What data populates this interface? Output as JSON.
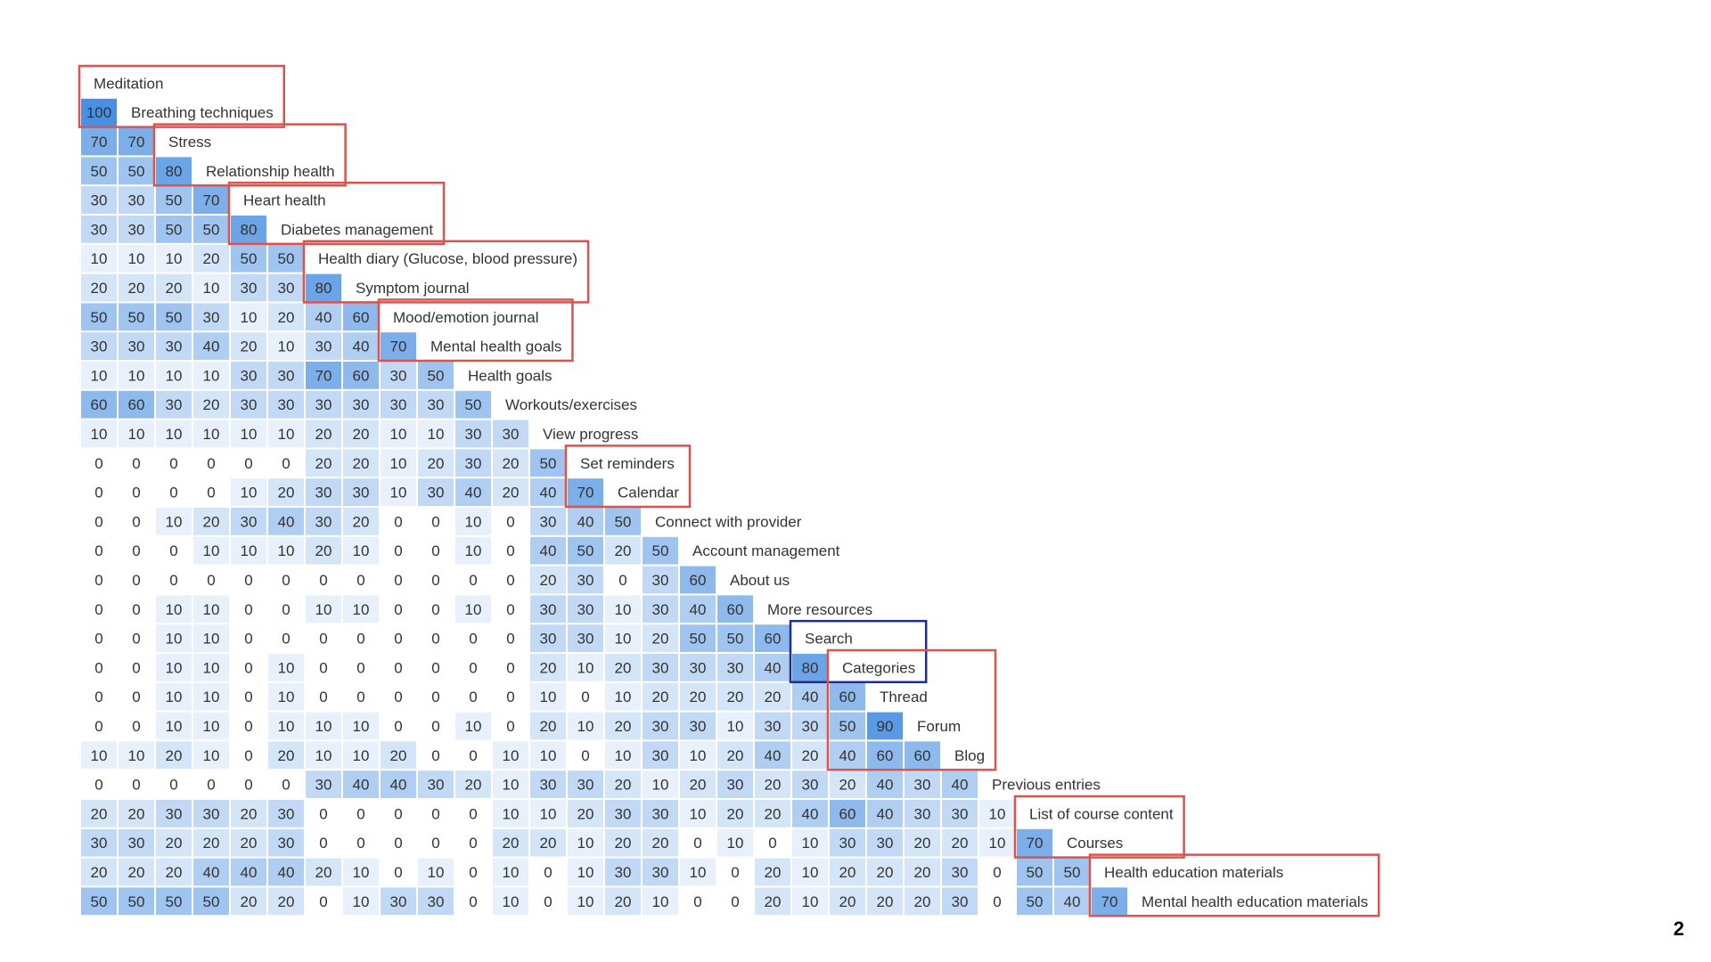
{
  "chart_data": {
    "type": "heatmap",
    "items": [
      "Meditation",
      "Breathing techniques",
      "Stress",
      "Relationship health",
      "Heart health",
      "Diabetes management",
      "Health diary (Glucose, blood pressure)",
      "Symptom journal",
      "Mood/emotion journal",
      "Mental health goals",
      "Health goals",
      "Workouts/exercises",
      "View progress",
      "Set reminders",
      "Calendar",
      "Connect with provider",
      "Account management",
      "About us",
      "More resources",
      "Search",
      "Categories",
      "Thread",
      "Forum",
      "Blog",
      "Previous entries",
      "List of course content",
      "Courses",
      "Health education materials",
      "Mental health education materials"
    ],
    "values": [
      [],
      [
        100
      ],
      [
        70,
        70
      ],
      [
        50,
        50,
        80
      ],
      [
        30,
        30,
        50,
        70
      ],
      [
        30,
        30,
        50,
        50,
        80
      ],
      [
        10,
        10,
        10,
        20,
        50,
        50
      ],
      [
        20,
        20,
        20,
        10,
        30,
        30,
        80
      ],
      [
        50,
        50,
        50,
        30,
        10,
        20,
        40,
        60
      ],
      [
        30,
        30,
        30,
        40,
        20,
        10,
        30,
        40,
        70
      ],
      [
        10,
        10,
        10,
        10,
        30,
        30,
        70,
        60,
        30,
        50
      ],
      [
        60,
        60,
        30,
        20,
        30,
        30,
        30,
        30,
        30,
        30,
        50
      ],
      [
        10,
        10,
        10,
        10,
        10,
        10,
        20,
        20,
        10,
        10,
        30,
        30
      ],
      [
        0,
        0,
        0,
        0,
        0,
        0,
        20,
        20,
        10,
        20,
        30,
        20,
        50
      ],
      [
        0,
        0,
        0,
        0,
        10,
        20,
        30,
        30,
        10,
        30,
        40,
        20,
        40,
        70
      ],
      [
        0,
        0,
        10,
        20,
        30,
        40,
        30,
        20,
        0,
        0,
        10,
        0,
        30,
        40,
        50
      ],
      [
        0,
        0,
        0,
        10,
        10,
        10,
        20,
        10,
        0,
        0,
        10,
        0,
        40,
        50,
        20,
        50
      ],
      [
        0,
        0,
        0,
        0,
        0,
        0,
        0,
        0,
        0,
        0,
        0,
        0,
        20,
        30,
        0,
        30,
        60
      ],
      [
        0,
        0,
        10,
        10,
        0,
        0,
        10,
        10,
        0,
        0,
        10,
        0,
        30,
        30,
        10,
        30,
        40,
        60
      ],
      [
        0,
        0,
        10,
        10,
        0,
        0,
        0,
        0,
        0,
        0,
        0,
        0,
        30,
        30,
        10,
        20,
        50,
        50,
        60
      ],
      [
        0,
        0,
        10,
        10,
        0,
        10,
        0,
        0,
        0,
        0,
        0,
        0,
        20,
        10,
        20,
        30,
        30,
        30,
        40,
        80
      ],
      [
        0,
        0,
        10,
        10,
        0,
        10,
        0,
        0,
        0,
        0,
        0,
        0,
        10,
        0,
        10,
        20,
        20,
        20,
        20,
        40,
        60
      ],
      [
        0,
        0,
        10,
        10,
        0,
        10,
        10,
        10,
        0,
        0,
        10,
        0,
        20,
        10,
        20,
        30,
        30,
        10,
        30,
        30,
        50,
        90
      ],
      [
        10,
        10,
        20,
        10,
        0,
        20,
        10,
        10,
        20,
        0,
        0,
        10,
        10,
        0,
        10,
        30,
        10,
        20,
        40,
        20,
        40,
        60,
        60
      ],
      [
        0,
        0,
        0,
        0,
        0,
        0,
        30,
        40,
        40,
        30,
        20,
        10,
        30,
        30,
        20,
        10,
        20,
        30,
        20,
        30,
        20,
        40,
        30,
        40
      ],
      [
        20,
        20,
        30,
        30,
        20,
        30,
        0,
        0,
        0,
        0,
        0,
        10,
        10,
        20,
        30,
        30,
        10,
        20,
        20,
        40,
        60,
        40,
        30,
        30,
        10
      ],
      [
        30,
        30,
        20,
        20,
        20,
        30,
        0,
        0,
        0,
        0,
        0,
        20,
        20,
        10,
        20,
        20,
        0,
        10,
        0,
        10,
        30,
        30,
        20,
        20,
        10,
        70
      ],
      [
        20,
        20,
        20,
        40,
        40,
        40,
        20,
        10,
        0,
        10,
        0,
        10,
        0,
        10,
        30,
        30,
        10,
        0,
        20,
        10,
        20,
        20,
        20,
        30,
        0,
        50,
        50
      ],
      [
        50,
        50,
        50,
        50,
        20,
        20,
        0,
        10,
        30,
        30,
        0,
        10,
        0,
        10,
        20,
        10,
        0,
        0,
        20,
        10,
        20,
        20,
        20,
        30,
        0,
        50,
        40,
        70
      ]
    ],
    "value_range": [
      0,
      100
    ],
    "color_low": "#ffffff",
    "color_high": "#4a90e2",
    "red_group_color": "#d9534f",
    "blue_group_color": "#1f2f8a",
    "groups": [
      {
        "first": 0,
        "last": 1,
        "color": "red"
      },
      {
        "first": 2,
        "last": 3,
        "color": "red"
      },
      {
        "first": 4,
        "last": 5,
        "color": "red"
      },
      {
        "first": 6,
        "last": 7,
        "color": "red"
      },
      {
        "first": 8,
        "last": 9,
        "color": "red"
      },
      {
        "first": 13,
        "last": 14,
        "color": "red"
      },
      {
        "first": 19,
        "last": 20,
        "color": "blue"
      },
      {
        "first": 20,
        "last": 23,
        "color": "red"
      },
      {
        "first": 25,
        "last": 26,
        "color": "red"
      },
      {
        "first": 27,
        "last": 28,
        "color": "red"
      }
    ]
  },
  "page_number": "2"
}
